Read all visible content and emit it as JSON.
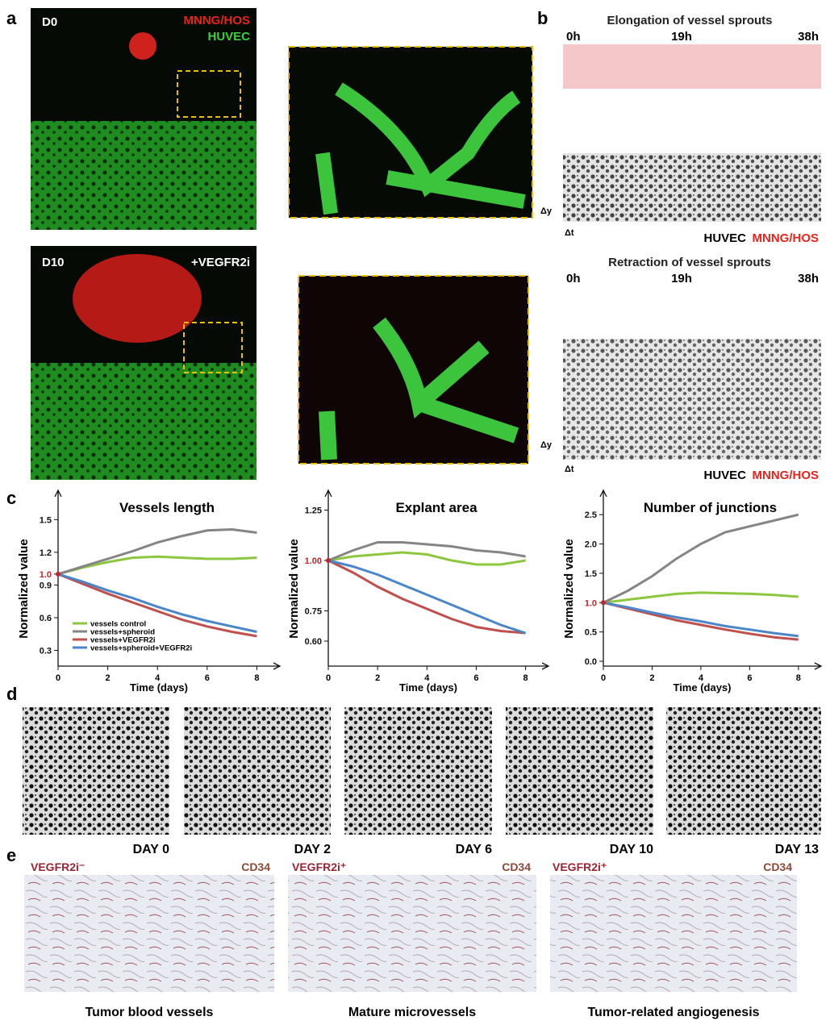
{
  "panels": {
    "a": {
      "letter": "a",
      "top": {
        "day": "D0",
        "tumor": "MNNG/HOS",
        "cells": "HUVEC"
      },
      "bottom": {
        "day": "D10",
        "treatment": "+VEGFR2i"
      }
    },
    "b": {
      "letter": "b",
      "top": {
        "title": "Elongation of vessel sprouts",
        "times": [
          "0h",
          "19h",
          "38h"
        ],
        "dy": "Δy",
        "dt": "Δt",
        "cells": "HUVEC",
        "tumor": "MNNG/HOS"
      },
      "bottom": {
        "title": "Retraction of vessel sprouts",
        "times": [
          "0h",
          "19h",
          "38h"
        ],
        "dy": "Δy",
        "dt": "Δt",
        "cells": "HUVEC",
        "tumor": "MNNG/HOS"
      }
    },
    "c": {
      "letter": "c"
    },
    "d": {
      "letter": "d",
      "days": [
        "DAY 0",
        "DAY 2",
        "DAY 6",
        "DAY 10",
        "DAY 13"
      ]
    },
    "e": {
      "letter": "e",
      "images": [
        {
          "condition": "VEGFR2i⁻",
          "marker": "CD34",
          "caption": "Tumor blood vessels"
        },
        {
          "condition": "VEGFR2i⁺",
          "marker": "CD34",
          "caption": "Mature microvessels"
        },
        {
          "condition": "VEGFR2i⁺",
          "marker": "CD34",
          "caption": "Tumor-related angiogenesis"
        }
      ]
    }
  },
  "chart_data": [
    {
      "type": "line",
      "title": "Vessels length",
      "xlabel": "Time (days)",
      "ylabel": "Normalized value",
      "legend": "lower left",
      "x": [
        0,
        1,
        2,
        3,
        4,
        5,
        6,
        7,
        8
      ],
      "xlim": [
        0,
        8.7
      ],
      "xticks": [
        0,
        2,
        4,
        6,
        8
      ],
      "ylim": [
        0.2,
        1.68
      ],
      "yticks": [
        0.3,
        0.6,
        0.9,
        {
          "value": 1,
          "label": "1.0"
        },
        1.2,
        1.5
      ],
      "series": [
        {
          "name": "vessels control",
          "color": "#8dc63f",
          "values": [
            1.0,
            1.06,
            1.11,
            1.15,
            1.16,
            1.15,
            1.14,
            1.14,
            1.15
          ]
        },
        {
          "name": "vessels+spheroid",
          "color": "#858585",
          "values": [
            1.0,
            1.07,
            1.14,
            1.21,
            1.29,
            1.35,
            1.4,
            1.41,
            1.38
          ]
        },
        {
          "name": "vessels+VEGFR2i",
          "color": "#c0504d",
          "values": [
            1.0,
            0.91,
            0.82,
            0.74,
            0.66,
            0.58,
            0.52,
            0.47,
            0.43
          ]
        },
        {
          "name": "vessels+spheroid+VEGFR2i",
          "color": "#4a86c8",
          "values": [
            1.0,
            0.93,
            0.85,
            0.78,
            0.7,
            0.63,
            0.57,
            0.52,
            0.47
          ]
        }
      ]
    },
    {
      "type": "line",
      "title": "Explant area",
      "xlabel": "Time (days)",
      "ylabel": "Normalized value",
      "legend": false,
      "x": [
        0,
        1,
        2,
        3,
        4,
        5,
        6,
        7,
        8
      ],
      "xlim": [
        0,
        8.7
      ],
      "xticks": [
        0,
        2,
        4,
        6,
        8
      ],
      "ylim": [
        0.5,
        1.3
      ],
      "yticks": [
        {
          "value": 0.6,
          "label": "0.60"
        },
        0.75,
        {
          "value": 1,
          "label": "1.00"
        },
        1.25
      ],
      "series": [
        {
          "color": "#8dc63f",
          "values": [
            1.0,
            1.02,
            1.03,
            1.04,
            1.03,
            1.0,
            0.98,
            0.98,
            1.0
          ]
        },
        {
          "color": "#858585",
          "values": [
            1.0,
            1.05,
            1.09,
            1.09,
            1.08,
            1.07,
            1.05,
            1.04,
            1.02
          ]
        },
        {
          "color": "#c0504d",
          "values": [
            1.0,
            0.94,
            0.87,
            0.81,
            0.76,
            0.71,
            0.67,
            0.65,
            0.64
          ]
        },
        {
          "color": "#4a86c8",
          "values": [
            1.0,
            0.97,
            0.93,
            0.88,
            0.83,
            0.78,
            0.73,
            0.68,
            0.64
          ]
        }
      ]
    },
    {
      "type": "line",
      "title": "Number of junctions",
      "xlabel": "Time (days)",
      "ylabel": "Normalized value",
      "legend": false,
      "x": [
        0,
        1,
        2,
        3,
        4,
        5,
        6,
        7,
        8
      ],
      "xlim": [
        0,
        8.7
      ],
      "xticks": [
        0,
        2,
        4,
        6,
        8
      ],
      "ylim": [
        0,
        2.75
      ],
      "yticks": [
        {
          "value": 0,
          "label": "0.0"
        },
        0.5,
        {
          "value": 1,
          "label": "1.0"
        },
        1.5,
        {
          "value": 2,
          "label": "2.0"
        },
        2.5
      ],
      "series": [
        {
          "color": "#8dc63f",
          "values": [
            1.0,
            1.05,
            1.1,
            1.15,
            1.17,
            1.16,
            1.15,
            1.13,
            1.1
          ]
        },
        {
          "color": "#858585",
          "values": [
            1.0,
            1.2,
            1.45,
            1.75,
            2.0,
            2.2,
            2.3,
            2.4,
            2.5
          ]
        },
        {
          "color": "#c0504d",
          "values": [
            1.0,
            0.9,
            0.8,
            0.7,
            0.62,
            0.54,
            0.47,
            0.41,
            0.37
          ]
        },
        {
          "color": "#4a86c8",
          "values": [
            1.0,
            0.92,
            0.83,
            0.75,
            0.68,
            0.6,
            0.54,
            0.48,
            0.43
          ]
        }
      ]
    }
  ]
}
